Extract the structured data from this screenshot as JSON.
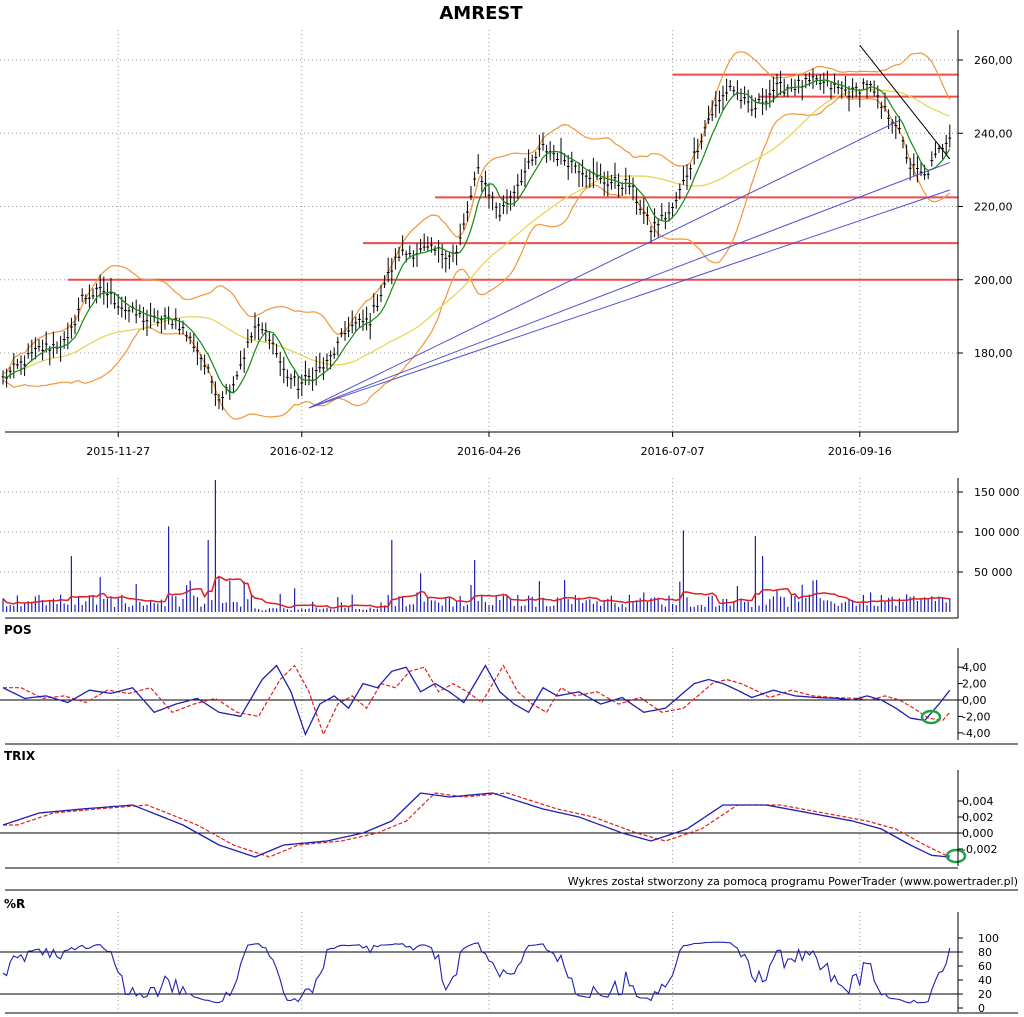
{
  "title": "AMREST",
  "credit": "Wykres został stworzony za pomocą programu PowerTrader (www.powertrader.pl)",
  "colors": {
    "candle": "#000000",
    "green_ma": "#138a13",
    "yellow_ma": "#e8d24a",
    "bands": "#f0973a",
    "hline": "#ef4b4b",
    "trend": "#5050d0",
    "indicator": "#2020b0",
    "signal": "#e02020",
    "vol_ma": "#e02020",
    "marker": "#20a040",
    "grid": "#9a9a9a"
  },
  "chart_data": [
    {
      "type": "candlestick",
      "title": "AMREST",
      "x_ticks": [
        "2015-11-27",
        "2016-02-12",
        "2016-04-26",
        "2016-07-07",
        "2016-09-16"
      ],
      "ylim": [
        160,
        265
      ],
      "y_ticks": [
        "180,00",
        "200,00",
        "220,00",
        "240,00",
        "260,00"
      ],
      "close_anchors": [
        [
          0,
          173
        ],
        [
          10,
          181
        ],
        [
          18,
          183
        ],
        [
          22,
          195
        ],
        [
          28,
          197
        ],
        [
          34,
          192
        ],
        [
          40,
          189
        ],
        [
          48,
          189
        ],
        [
          54,
          181
        ],
        [
          60,
          168
        ],
        [
          64,
          172
        ],
        [
          70,
          187
        ],
        [
          74,
          185
        ],
        [
          78,
          175
        ],
        [
          82,
          171
        ],
        [
          90,
          177
        ],
        [
          96,
          187
        ],
        [
          102,
          189
        ],
        [
          106,
          199
        ],
        [
          110,
          207
        ],
        [
          118,
          208
        ],
        [
          126,
          207
        ],
        [
          132,
          230
        ],
        [
          138,
          218
        ],
        [
          144,
          228
        ],
        [
          150,
          236
        ],
        [
          158,
          232
        ],
        [
          166,
          227
        ],
        [
          174,
          226
        ],
        [
          180,
          214
        ],
        [
          186,
          219
        ],
        [
          192,
          234
        ],
        [
          196,
          244
        ],
        [
          202,
          253
        ],
        [
          208,
          246
        ],
        [
          214,
          252
        ],
        [
          226,
          254
        ],
        [
          236,
          251
        ],
        [
          240,
          254
        ],
        [
          244,
          247
        ],
        [
          248,
          243
        ],
        [
          252,
          231
        ],
        [
          256,
          228
        ],
        [
          260,
          235
        ],
        [
          263,
          240
        ]
      ],
      "support_resistance": [
        200,
        210,
        222.5,
        250,
        256
      ],
      "grid": true
    },
    {
      "type": "bar",
      "name": "volume",
      "y_ticks": [
        "50 000",
        "100 000",
        "150 000"
      ],
      "ylim": [
        0,
        170000
      ],
      "spikes": [
        [
          19,
          70000
        ],
        [
          46,
          107000
        ],
        [
          57,
          90000
        ],
        [
          59,
          165000
        ],
        [
          108,
          90000
        ],
        [
          131,
          65000
        ],
        [
          189,
          102000
        ],
        [
          209,
          95000
        ],
        [
          211,
          70000
        ]
      ],
      "grid": true
    },
    {
      "type": "line",
      "title": "POS",
      "y_ticks": [
        "4,00",
        "2,00",
        "0,00",
        "-2,00",
        "-4,00"
      ],
      "ylim": [
        -4.5,
        4.5
      ],
      "anchors": [
        [
          0,
          1.5
        ],
        [
          6,
          0.2
        ],
        [
          12,
          0.5
        ],
        [
          18,
          -0.3
        ],
        [
          24,
          1.2
        ],
        [
          30,
          0.8
        ],
        [
          36,
          1.5
        ],
        [
          42,
          -1.5
        ],
        [
          48,
          -0.5
        ],
        [
          54,
          0.2
        ],
        [
          60,
          -1.5
        ],
        [
          66,
          -2.0
        ],
        [
          72,
          2.5
        ],
        [
          76,
          4.2
        ],
        [
          80,
          1.0
        ],
        [
          84,
          -4.2
        ],
        [
          88,
          -0.5
        ],
        [
          92,
          0.5
        ],
        [
          96,
          -1.0
        ],
        [
          100,
          2.0
        ],
        [
          104,
          1.5
        ],
        [
          108,
          3.5
        ],
        [
          112,
          4.0
        ],
        [
          116,
          1.0
        ],
        [
          120,
          2.0
        ],
        [
          124,
          1.0
        ],
        [
          128,
          -0.3
        ],
        [
          134,
          4.2
        ],
        [
          138,
          1.0
        ],
        [
          142,
          -0.5
        ],
        [
          146,
          -1.5
        ],
        [
          150,
          1.5
        ],
        [
          154,
          0.5
        ],
        [
          160,
          1.0
        ],
        [
          166,
          -0.5
        ],
        [
          172,
          0.3
        ],
        [
          178,
          -1.5
        ],
        [
          184,
          -1.0
        ],
        [
          188,
          0.5
        ],
        [
          192,
          2.0
        ],
        [
          196,
          2.5
        ],
        [
          200,
          2.0
        ],
        [
          204,
          1.2
        ],
        [
          208,
          0.3
        ],
        [
          214,
          1.2
        ],
        [
          220,
          0.5
        ],
        [
          226,
          0.3
        ],
        [
          232,
          0.2
        ],
        [
          236,
          0.0
        ],
        [
          240,
          0.5
        ],
        [
          244,
          0.0
        ],
        [
          248,
          -1.0
        ],
        [
          252,
          -2.2
        ],
        [
          256,
          -2.5
        ],
        [
          260,
          -0.5
        ],
        [
          263,
          1.2
        ]
      ],
      "signal_lag": 5
    },
    {
      "type": "line",
      "title": "TRIX",
      "y_ticks": [
        "0,004",
        "0,002",
        "0,000",
        "-0,002"
      ],
      "ylim": [
        -0.004,
        0.0055
      ],
      "anchors": [
        [
          0,
          0.001
        ],
        [
          10,
          0.0025
        ],
        [
          22,
          0.003
        ],
        [
          36,
          0.0035
        ],
        [
          50,
          0.001
        ],
        [
          60,
          -0.0015
        ],
        [
          70,
          -0.003
        ],
        [
          78,
          -0.0015
        ],
        [
          90,
          -0.001
        ],
        [
          100,
          0.0
        ],
        [
          108,
          0.0015
        ],
        [
          116,
          0.005
        ],
        [
          124,
          0.0045
        ],
        [
          136,
          0.005
        ],
        [
          150,
          0.003
        ],
        [
          160,
          0.002
        ],
        [
          172,
          0.0
        ],
        [
          180,
          -0.001
        ],
        [
          190,
          0.0005
        ],
        [
          200,
          0.0035
        ],
        [
          212,
          0.0035
        ],
        [
          224,
          0.0025
        ],
        [
          236,
          0.0015
        ],
        [
          244,
          0.0005
        ],
        [
          252,
          -0.0015
        ],
        [
          258,
          -0.0028
        ],
        [
          263,
          -0.003
        ]
      ],
      "signal_lag": 4
    },
    {
      "type": "line",
      "title": "%R",
      "y_ticks": [
        "100",
        "80",
        "60",
        "40",
        "20",
        "0"
      ],
      "ylim": [
        0,
        100
      ],
      "levels": [
        20,
        80
      ]
    }
  ]
}
